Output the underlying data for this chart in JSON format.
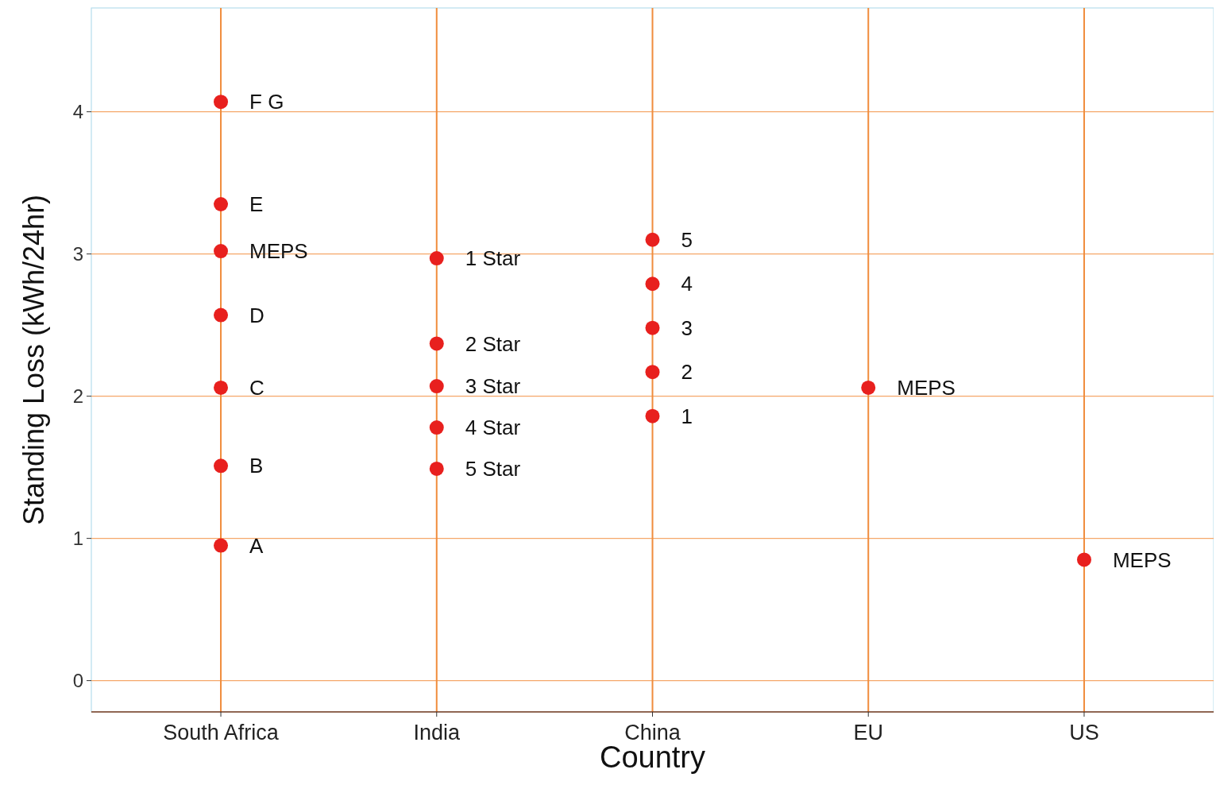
{
  "chart_data": {
    "type": "scatter",
    "xlabel": "Country",
    "ylabel": "Standing Loss (kWh/24hr)",
    "categories": [
      "South Africa",
      "India",
      "China",
      "EU",
      "US"
    ],
    "ylim": [
      -0.22,
      4.73
    ],
    "yticks": [
      0,
      1,
      2,
      3,
      4
    ],
    "grid": true,
    "marker": "circle",
    "series": [
      {
        "color": "#e8201e",
        "x": [
          "South Africa",
          "South Africa",
          "South Africa",
          "South Africa",
          "South Africa",
          "South Africa",
          "South Africa",
          "India",
          "India",
          "India",
          "India",
          "India",
          "China",
          "China",
          "China",
          "China",
          "China",
          "EU",
          "US"
        ],
        "values": [
          4.07,
          3.35,
          3.02,
          2.57,
          2.06,
          1.51,
          0.95,
          2.97,
          2.37,
          2.07,
          1.78,
          1.49,
          3.1,
          2.79,
          2.48,
          2.17,
          1.86,
          2.06,
          0.85
        ]
      }
    ],
    "annotations": [
      {
        "text": "F G",
        "x": "South Africa",
        "y": 4.07
      },
      {
        "text": "E",
        "x": "South Africa",
        "y": 3.35
      },
      {
        "text": "MEPS",
        "x": "South Africa",
        "y": 3.02
      },
      {
        "text": "D",
        "x": "South Africa",
        "y": 2.57
      },
      {
        "text": "C",
        "x": "South Africa",
        "y": 2.06
      },
      {
        "text": "B",
        "x": "South Africa",
        "y": 1.51
      },
      {
        "text": "A",
        "x": "South Africa",
        "y": 0.95
      },
      {
        "text": "1 Star",
        "x": "India",
        "y": 2.97
      },
      {
        "text": "2 Star",
        "x": "India",
        "y": 2.37
      },
      {
        "text": "3 Star",
        "x": "India",
        "y": 2.07
      },
      {
        "text": "4 Star",
        "x": "India",
        "y": 1.78
      },
      {
        "text": "5 Star",
        "x": "India",
        "y": 1.49
      },
      {
        "text": "5",
        "x": "China",
        "y": 3.1
      },
      {
        "text": "4",
        "x": "China",
        "y": 2.79
      },
      {
        "text": "3",
        "x": "China",
        "y": 2.48
      },
      {
        "text": "2",
        "x": "China",
        "y": 2.17
      },
      {
        "text": "1",
        "x": "China",
        "y": 1.86
      },
      {
        "text": "MEPS",
        "x": "EU",
        "y": 2.06
      },
      {
        "text": "MEPS",
        "x": "US",
        "y": 0.85
      }
    ]
  }
}
